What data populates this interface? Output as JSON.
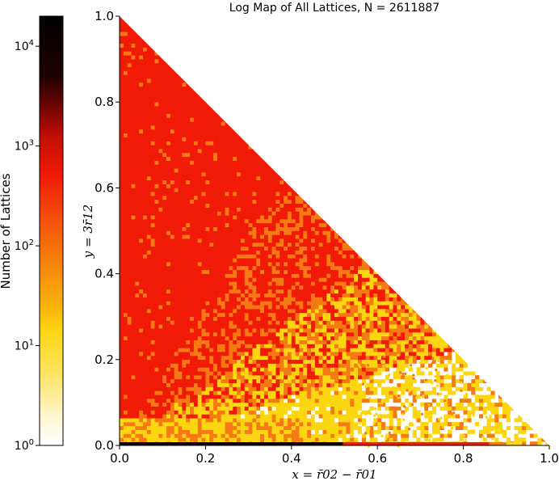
{
  "chart_data": {
    "type": "heatmap",
    "title": "Log Map of All Lattices, N = 2611887",
    "xlabel": "x = r̄02 − r̄01",
    "ylabel": "y = 3r̄12",
    "xlim": [
      0.0,
      1.0
    ],
    "ylim": [
      0.0,
      1.0
    ],
    "x_ticks": [
      "0.0",
      "0.2",
      "0.4",
      "0.6",
      "0.8",
      "1.0"
    ],
    "y_ticks": [
      "0.0",
      "0.2",
      "0.4",
      "0.6",
      "0.8",
      "1.0"
    ],
    "colorbar": {
      "label": "Number of Lattices",
      "scale": "log",
      "range": [
        1,
        20000
      ],
      "ticks": [
        "10^0",
        "10^1",
        "10^2",
        "10^3",
        "10^4"
      ],
      "colormap": "hot_r"
    },
    "support_region": "triangle x >= 0, y >= 0, x + y <= 1",
    "density_bands": [
      {
        "region": "upper-left triangle (x small, y large)",
        "count_approx": 300
      },
      {
        "region": "central band",
        "count_approx": 100
      },
      {
        "region": "lower-right sparse region",
        "count_approx": 10
      },
      {
        "region": "along y = 0 edge",
        "count_approx": 10000
      }
    ],
    "colors": {
      "dark": "#0d0000",
      "red": "#f01a06",
      "orange": "#f57a14",
      "yellow": "#fcd611",
      "white": "#fffef5"
    }
  }
}
